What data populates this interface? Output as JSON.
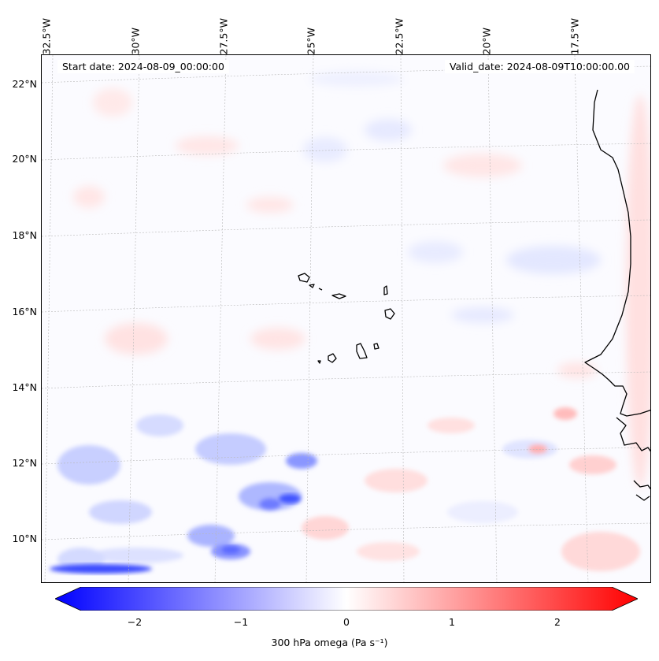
{
  "map": {
    "lon_labels": [
      "32.5°W",
      "30°W",
      "27.5°W",
      "25°W",
      "22.5°W",
      "20°W",
      "17.5°W"
    ],
    "lat_labels": [
      "22°N",
      "20°N",
      "18°N",
      "16°N",
      "14°N",
      "12°N",
      "10°N"
    ],
    "start_date": "Start date: 2024-08-09_00:00:00",
    "valid_date": "Valid_date: 2024-08-09T10:00:00.00",
    "gridlines": true,
    "coastline_color": "#000000",
    "extent": {
      "lon_min": -32.6,
      "lon_max": -15.2,
      "lat_min": 8.9,
      "lat_max": 22.8
    }
  },
  "colorbar": {
    "label": "300 hPa omega (Pa s⁻¹)",
    "ticks": [
      "−2",
      "−1",
      "0",
      "1",
      "2"
    ],
    "range": [
      -2.6,
      2.6
    ],
    "colormap": "bwr",
    "low_color": "#0000ff",
    "mid_color": "#ffffff",
    "high_color": "#ff0000"
  }
}
